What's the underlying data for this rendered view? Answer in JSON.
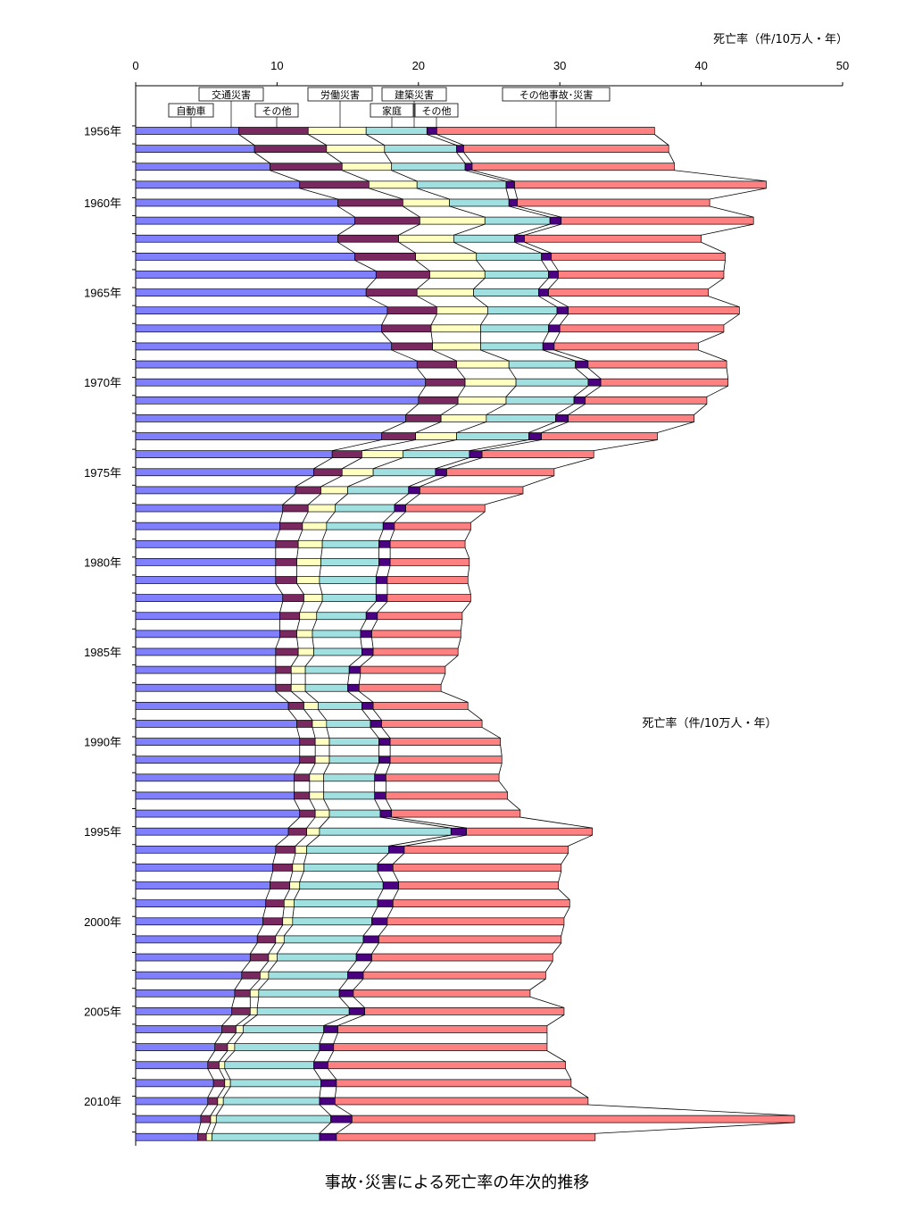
{
  "chart_data": {
    "type": "bar",
    "orientation": "horizontal-stacked",
    "title": "事故･災害による死亡率の年次的推移",
    "axis_title_top": "死亡率（件/10万人・年）",
    "axis_title_inside": "死亡率（件/10万人・年）",
    "xlim": [
      0,
      50
    ],
    "x_ticks": [
      "0",
      "10",
      "20",
      "30",
      "40",
      "50"
    ],
    "year_labels": [
      {
        "label": "1956年",
        "year": 1956
      },
      {
        "label": "1960年",
        "year": 1960
      },
      {
        "label": "1965年",
        "year": 1965
      },
      {
        "label": "1970年",
        "year": 1970
      },
      {
        "label": "1975年",
        "year": 1975
      },
      {
        "label": "1980年",
        "year": 1980
      },
      {
        "label": "1985年",
        "year": 1985
      },
      {
        "label": "1990年",
        "year": 1990
      },
      {
        "label": "1995年",
        "year": 1995
      },
      {
        "label": "2000年",
        "year": 2000
      },
      {
        "label": "2005年",
        "year": 2005
      },
      {
        "label": "2010年",
        "year": 2010
      }
    ],
    "years": [
      1956,
      1957,
      1958,
      1959,
      1960,
      1961,
      1962,
      1963,
      1964,
      1965,
      1966,
      1967,
      1968,
      1969,
      1970,
      1971,
      1972,
      1973,
      1974,
      1975,
      1976,
      1977,
      1978,
      1979,
      1980,
      1981,
      1982,
      1983,
      1984,
      1985,
      1986,
      1987,
      1988,
      1989,
      1990,
      1991,
      1992,
      1993,
      1994,
      1995,
      1996,
      1997,
      1998,
      1999,
      2000,
      2001,
      2002,
      2003,
      2004,
      2005,
      2006,
      2007,
      2008,
      2009,
      2010,
      2011,
      2012
    ],
    "legend_labels": [
      {
        "name": "交通災害",
        "row": 1
      },
      {
        "name": "自動車",
        "row": 2
      },
      {
        "name": "その他",
        "row": 2
      },
      {
        "name": "労働災害",
        "row": 1
      },
      {
        "name": "建築災害",
        "row": 1
      },
      {
        "name": "家庭",
        "row": 2
      },
      {
        "name": "その他",
        "row": 2
      },
      {
        "name": "その他事故･災害",
        "row": 1
      }
    ],
    "series": [
      {
        "name": "自動車",
        "color": "#8080ff",
        "values": [
          7.3,
          8.4,
          9.5,
          11.6,
          14.3,
          15.5,
          14.3,
          15.5,
          17.0,
          16.3,
          17.8,
          17.4,
          18.1,
          19.9,
          20.5,
          20.0,
          19.1,
          17.4,
          13.9,
          12.6,
          11.3,
          10.4,
          10.2,
          9.9,
          9.9,
          9.9,
          10.4,
          10.2,
          10.2,
          9.9,
          9.9,
          9.9,
          10.8,
          11.4,
          11.6,
          11.6,
          11.2,
          11.2,
          11.6,
          10.8,
          9.9,
          9.7,
          9.5,
          9.2,
          9.0,
          8.6,
          8.1,
          7.5,
          7.0,
          6.8,
          6.1,
          5.6,
          5.1,
          5.5,
          5.1,
          4.6,
          4.4
        ]
      },
      {
        "name": "交通その他",
        "color": "#7a2860",
        "values": [
          4.9,
          5.1,
          5.1,
          4.9,
          4.6,
          4.6,
          4.3,
          4.3,
          3.8,
          3.6,
          3.5,
          3.5,
          2.9,
          2.8,
          2.8,
          2.8,
          2.5,
          2.4,
          2.1,
          2.0,
          1.8,
          1.8,
          1.6,
          1.6,
          1.5,
          1.5,
          1.5,
          1.4,
          1.2,
          1.6,
          1.1,
          1.1,
          1.1,
          1.1,
          1.1,
          1.1,
          1.1,
          1.1,
          1.1,
          1.3,
          1.4,
          1.4,
          1.4,
          1.3,
          1.4,
          1.3,
          1.3,
          1.3,
          1.1,
          1.3,
          1.0,
          0.9,
          0.8,
          0.8,
          0.7,
          0.7,
          0.6
        ]
      },
      {
        "name": "労働災害",
        "color": "#ffffc0",
        "values": [
          4.1,
          4.1,
          3.5,
          3.4,
          3.3,
          4.6,
          3.9,
          4.3,
          3.9,
          4.0,
          3.6,
          3.5,
          3.4,
          3.7,
          3.6,
          3.4,
          3.2,
          2.9,
          2.9,
          2.2,
          1.9,
          1.9,
          1.7,
          1.7,
          1.7,
          1.6,
          1.3,
          1.2,
          1.1,
          1.1,
          1.0,
          1.0,
          1.0,
          1.0,
          1.0,
          1.0,
          1.0,
          1.0,
          1.0,
          0.9,
          0.8,
          0.8,
          0.7,
          0.7,
          0.7,
          0.6,
          0.6,
          0.6,
          0.6,
          0.5,
          0.5,
          0.5,
          0.4,
          0.4,
          0.4,
          0.4,
          0.4
        ]
      },
      {
        "name": "建築災害",
        "color": "#a0e0e0",
        "values": [
          4.3,
          5.1,
          5.2,
          6.3,
          4.2,
          4.6,
          4.3,
          4.6,
          4.5,
          4.6,
          4.9,
          4.8,
          4.4,
          4.7,
          5.1,
          4.8,
          4.9,
          5.1,
          4.7,
          4.4,
          4.3,
          4.2,
          4.0,
          4.0,
          4.1,
          4.0,
          3.8,
          3.5,
          3.4,
          3.4,
          3.1,
          3.0,
          3.1,
          3.1,
          3.5,
          3.5,
          3.6,
          3.6,
          3.6,
          9.3,
          5.8,
          5.2,
          5.9,
          5.9,
          5.6,
          5.6,
          5.6,
          5.6,
          5.7,
          6.5,
          5.7,
          6.0,
          6.3,
          6.4,
          6.8,
          8.1,
          7.6
        ]
      },
      {
        "name": "家庭･その他",
        "color": "#4b0082",
        "values": [
          0.7,
          0.5,
          0.5,
          0.6,
          0.6,
          0.8,
          0.7,
          0.7,
          0.7,
          0.7,
          0.8,
          0.8,
          0.8,
          0.9,
          0.9,
          0.8,
          0.9,
          0.9,
          0.9,
          0.8,
          0.8,
          0.8,
          0.8,
          0.8,
          0.8,
          0.8,
          0.8,
          0.8,
          0.8,
          0.8,
          0.8,
          0.8,
          0.8,
          0.8,
          0.8,
          0.8,
          0.8,
          0.8,
          0.8,
          1.1,
          1.1,
          1.1,
          1.1,
          1.1,
          1.1,
          1.1,
          1.1,
          1.1,
          1.0,
          1.1,
          1.0,
          1.0,
          1.0,
          1.1,
          1.1,
          1.5,
          1.2
        ]
      },
      {
        "name": "その他事故･災害",
        "color": "#ff8080",
        "values": [
          15.4,
          14.5,
          14.3,
          17.8,
          13.6,
          13.6,
          12.5,
          12.3,
          11.7,
          11.3,
          12.1,
          11.6,
          10.2,
          9.8,
          9.0,
          8.6,
          8.9,
          8.2,
          7.9,
          7.6,
          7.3,
          5.6,
          5.4,
          5.3,
          5.6,
          5.7,
          5.9,
          6.0,
          6.3,
          6.0,
          6.0,
          5.8,
          6.7,
          7.1,
          7.8,
          7.9,
          8.0,
          8.6,
          9.1,
          8.9,
          11.6,
          11.9,
          11.3,
          12.5,
          12.5,
          12.9,
          12.8,
          12.9,
          12.5,
          14.1,
          14.8,
          15.1,
          16.8,
          16.6,
          17.9,
          31.3,
          18.3
        ]
      }
    ]
  }
}
